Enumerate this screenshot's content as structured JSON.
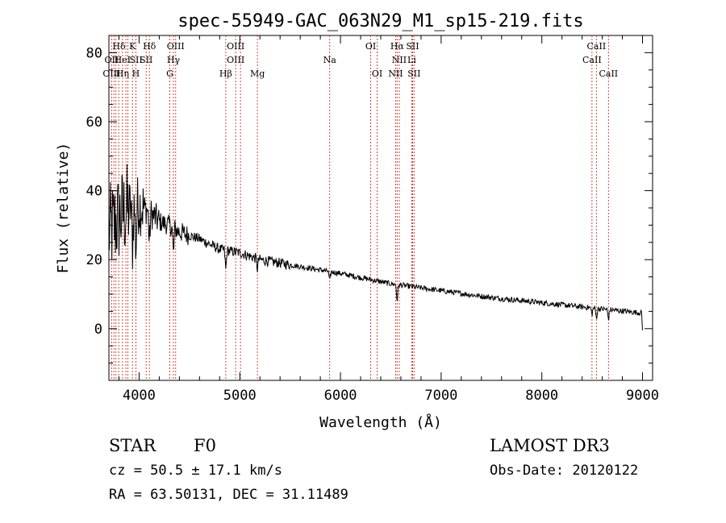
{
  "chart_data": {
    "type": "line",
    "title": "spec-55949-GAC_063N29_M1_sp15-219.fits",
    "xlabel": "Wavelength (Å)",
    "ylabel": "Flux (relative)",
    "xlim": [
      3700,
      9100
    ],
    "ylim": [
      -15,
      85
    ],
    "x_ticks": [
      4000,
      5000,
      6000,
      7000,
      8000,
      9000
    ],
    "y_ticks": [
      0,
      20,
      40,
      60,
      80
    ],
    "x_tick_labels": [
      "4000",
      "5000",
      "6000",
      "7000",
      "8000",
      "9000"
    ],
    "y_tick_labels": [
      "0",
      "20",
      "40",
      "60",
      "80"
    ],
    "spectrum_continuum": [
      {
        "x": 3700,
        "y": 28
      },
      {
        "x": 3800,
        "y": 32
      },
      {
        "x": 3900,
        "y": 35
      },
      {
        "x": 4000,
        "y": 36
      },
      {
        "x": 4100,
        "y": 34
      },
      {
        "x": 4200,
        "y": 31
      },
      {
        "x": 4300,
        "y": 30
      },
      {
        "x": 4400,
        "y": 28
      },
      {
        "x": 4600,
        "y": 26
      },
      {
        "x": 4800,
        "y": 23
      },
      {
        "x": 5000,
        "y": 22
      },
      {
        "x": 5200,
        "y": 20
      },
      {
        "x": 5500,
        "y": 18.5
      },
      {
        "x": 6000,
        "y": 16
      },
      {
        "x": 6500,
        "y": 13
      },
      {
        "x": 7000,
        "y": 11
      },
      {
        "x": 7500,
        "y": 9
      },
      {
        "x": 8000,
        "y": 7.5
      },
      {
        "x": 8500,
        "y": 6
      },
      {
        "x": 9000,
        "y": 4.5
      }
    ],
    "spectral_lines": [
      {
        "label": "Hδ",
        "x": 3800,
        "row": 0
      },
      {
        "label": "OII",
        "x": 3727,
        "row": 1
      },
      {
        "label": "OIII",
        "x": 3727,
        "row": 2
      },
      {
        "label": "HeI",
        "x": 3835,
        "row": 1
      },
      {
        "label": "Hη",
        "x": 3835,
        "row": 2
      },
      {
        "label": "K",
        "x": 3934,
        "row": 0
      },
      {
        "label": "SII",
        "x": 3970,
        "row": 1
      },
      {
        "label": "H",
        "x": 3968,
        "row": 2
      },
      {
        "label": "Hδ",
        "x": 4102,
        "row": 0
      },
      {
        "label": "SII",
        "x": 4070,
        "row": 1
      },
      {
        "label": "OIII",
        "x": 4363,
        "row": 0
      },
      {
        "label": "Hγ",
        "x": 4341,
        "row": 1
      },
      {
        "label": "G",
        "x": 4305,
        "row": 2
      },
      {
        "label": "OIII",
        "x": 4959,
        "row": 0
      },
      {
        "label": "OIII",
        "x": 4959,
        "row": 1
      },
      {
        "label": "Hβ",
        "x": 4861,
        "row": 2
      },
      {
        "label": "Mg",
        "x": 5175,
        "row": 2
      },
      {
        "label": "Na",
        "x": 5893,
        "row": 1
      },
      {
        "label": "OI",
        "x": 6300,
        "row": 0
      },
      {
        "label": "OI",
        "x": 6364,
        "row": 2
      },
      {
        "label": "Hα",
        "x": 6563,
        "row": 0
      },
      {
        "label": "SII",
        "x": 6716,
        "row": 0
      },
      {
        "label": "NII",
        "x": 6584,
        "row": 1
      },
      {
        "label": "Li",
        "x": 6708,
        "row": 1
      },
      {
        "label": "NII",
        "x": 6548,
        "row": 2
      },
      {
        "label": "SII",
        "x": 6731,
        "row": 2
      },
      {
        "label": "CaII",
        "x": 8542,
        "row": 0
      },
      {
        "label": "CaII",
        "x": 8498,
        "row": 1
      },
      {
        "label": "CaII",
        "x": 8662,
        "row": 2
      }
    ],
    "marker_wavelengths": [
      3727,
      3750,
      3770,
      3798,
      3835,
      3869,
      3889,
      3934,
      3968,
      4070,
      4102,
      4305,
      4341,
      4363,
      4861,
      4959,
      5007,
      5175,
      5893,
      6300,
      6364,
      6548,
      6563,
      6584,
      6708,
      6716,
      6731,
      8498,
      8542,
      8662
    ]
  },
  "info": {
    "class": "STAR",
    "subclass": "F0",
    "survey": "LAMOST DR3",
    "redshift": "cz = 50.5 ± 17.1 km/s",
    "obs_date": "Obs-Date: 20120122",
    "coords": "RA =  63.50131, DEC =  31.11489"
  },
  "colors": {
    "axis": "#000000",
    "spectrum": "#000000",
    "line_markers": "#c0392b"
  }
}
